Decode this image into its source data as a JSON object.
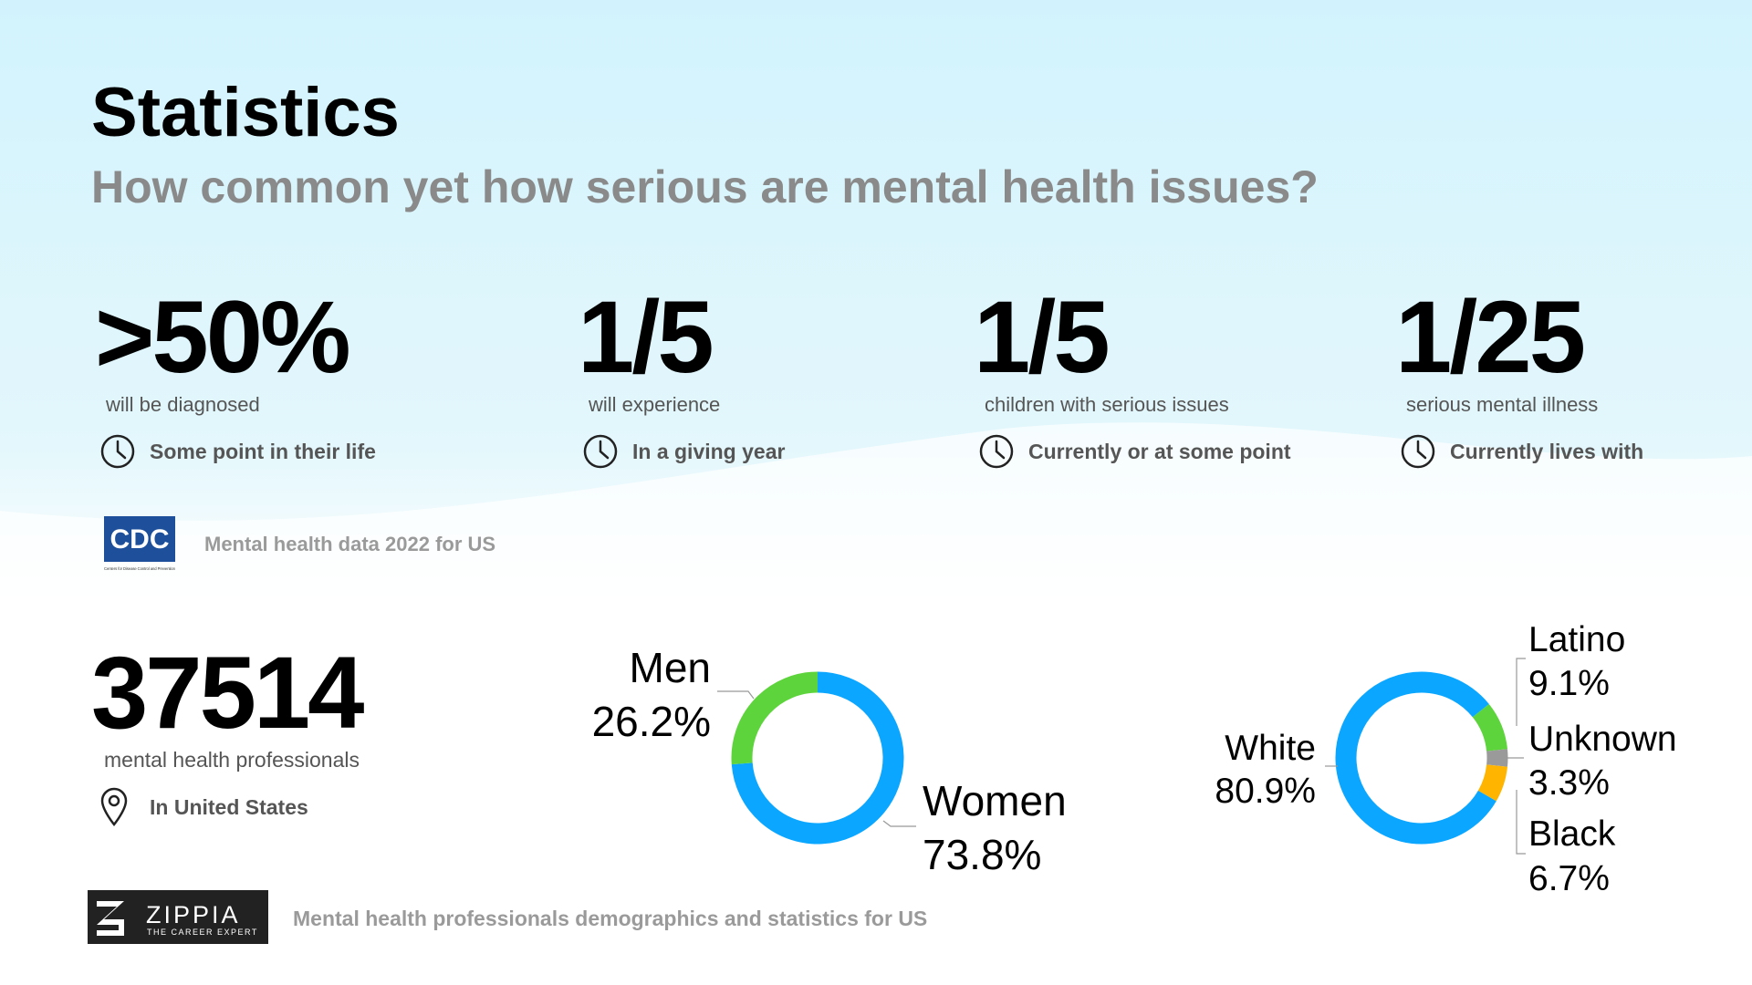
{
  "header": {
    "title": "Statistics",
    "subtitle": "How common yet how serious are mental health issues?"
  },
  "stats": [
    {
      "value": ">50%",
      "label": "will be diagnosed",
      "note": "Some point in their life"
    },
    {
      "value": "1/5",
      "label": "will experience",
      "note": "In a giving year"
    },
    {
      "value": "1/5",
      "label": "children with serious issues",
      "note": "Currently or at some point"
    },
    {
      "value": "1/25",
      "label": "serious mental illness",
      "note": "Currently lives with"
    }
  ],
  "cdc_source": {
    "logo": "CDC",
    "logo_caption": "Centers for Disease Control and Prevention",
    "text": "Mental health data 2022 for US"
  },
  "professionals": {
    "value": 37514,
    "label": "mental health professionals",
    "note": "In United States"
  },
  "chart_data": [
    {
      "type": "donut",
      "categories": [
        "Men",
        "Women"
      ],
      "values": [
        26.2,
        73.8
      ],
      "value_labels": [
        "26.2%",
        "73.8%"
      ],
      "colors": [
        "#5ed43c",
        "#0aa6ff"
      ]
    },
    {
      "type": "donut",
      "categories": [
        "Latino",
        "Unknown",
        "Black",
        "White"
      ],
      "values": [
        9.1,
        3.3,
        6.7,
        80.9
      ],
      "value_labels": [
        "9.1%",
        "3.3%",
        "6.7%",
        "80.9%"
      ],
      "colors": [
        "#5ed43c",
        "#9a9a9a",
        "#ffb400",
        "#0aa6ff"
      ]
    }
  ],
  "footer": {
    "logo": "ZIPPIA",
    "logo_tagline": "THE CAREER EXPERT",
    "text": "Mental health professionals demographics and statistics for US"
  }
}
